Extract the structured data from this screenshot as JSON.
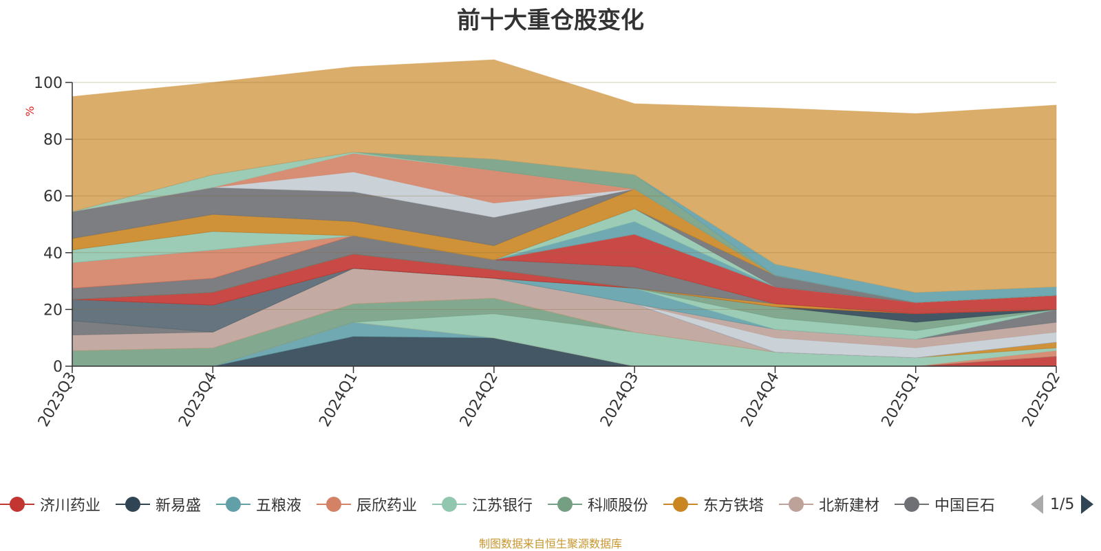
{
  "title": "前十大重仓股变化",
  "source": "制图数据来自恒生聚源数据库",
  "legend_pager": "1/5",
  "chart_data": {
    "type": "area",
    "stacked": true,
    "title": "前十大重仓股变化",
    "ylabel": "%",
    "ylim": [
      0,
      100
    ],
    "yticks": [
      0,
      20,
      40,
      60,
      80,
      100
    ],
    "grid": true,
    "legend_position": "bottom",
    "categories": [
      "2023Q3",
      "2023Q4",
      "2024Q1",
      "2024Q2",
      "2024Q3",
      "2024Q4",
      "2025Q1",
      "2025Q2"
    ],
    "series": [
      {
        "name": "济川药业",
        "color": "#c23531",
        "legend": true,
        "values": [
          0,
          0,
          0,
          0,
          0,
          0,
          0,
          3.5
        ]
      },
      {
        "name": "新易盛",
        "color": "#2f4554",
        "legend": true,
        "values": [
          0,
          0,
          10.5,
          10,
          0,
          0,
          0,
          0
        ]
      },
      {
        "name": "五粮液",
        "color": "#61a0a8",
        "legend": true,
        "values": [
          0,
          0,
          5,
          0,
          0,
          0,
          0,
          0
        ]
      },
      {
        "name": "辰欣药业",
        "color": "#d48265",
        "legend": true,
        "values": [
          0,
          0,
          0,
          0,
          0,
          0,
          0,
          2
        ]
      },
      {
        "name": "江苏银行",
        "color": "#91c7ae",
        "legend": true,
        "values": [
          0,
          0,
          0,
          8.5,
          12,
          5,
          3,
          1
        ]
      },
      {
        "name": "科顺股份",
        "color": "#749f83",
        "legend": true,
        "values": [
          5.5,
          6.5,
          6.5,
          5.5,
          0,
          0,
          0,
          0
        ]
      },
      {
        "name": "东方铁塔",
        "color": "#ca8622",
        "legend": true,
        "values": [
          0,
          0,
          0,
          0,
          0,
          0,
          0,
          2
        ]
      },
      {
        "name": "北新建材",
        "color": "#bda29a",
        "legend": true,
        "values": [
          5.5,
          5.5,
          12.5,
          7,
          10,
          0,
          0,
          0
        ]
      },
      {
        "name": "中国巨石",
        "color": "#6e7074",
        "legend": true,
        "values": [
          5,
          0,
          0,
          0,
          0,
          0,
          0,
          0
        ]
      },
      {
        "name": "",
        "color": "#546570",
        "legend": false,
        "values": [
          7.5,
          9.5,
          0,
          0,
          0,
          0,
          0,
          0
        ]
      },
      {
        "name": "",
        "color": "#c4ccd3",
        "legend": false,
        "values": [
          0,
          0,
          0,
          0,
          0,
          5,
          3.5,
          3.5
        ]
      },
      {
        "name": "",
        "color": "#bda29a",
        "legend": false,
        "values": [
          0,
          0,
          0,
          0,
          0,
          3,
          3,
          3.5
        ]
      },
      {
        "name": "",
        "color": "#6e7074",
        "legend": false,
        "values": [
          0,
          0,
          0,
          0,
          0,
          0,
          0,
          4.5
        ]
      },
      {
        "name": "",
        "color": "#61a0a8",
        "legend": false,
        "values": [
          0,
          0,
          0,
          0,
          5.5,
          0,
          0,
          0
        ]
      },
      {
        "name": "",
        "color": "#91c7ae",
        "legend": false,
        "values": [
          0,
          0,
          0,
          0,
          0,
          4,
          3,
          0
        ]
      },
      {
        "name": "",
        "color": "#749f83",
        "legend": false,
        "values": [
          0,
          0,
          0,
          0,
          0,
          4,
          3,
          0
        ]
      },
      {
        "name": "",
        "color": "#2f4554",
        "legend": false,
        "values": [
          0,
          0,
          0,
          0,
          0,
          0,
          3,
          0
        ]
      },
      {
        "name": "",
        "color": "#c23531",
        "legend": false,
        "values": [
          0,
          4.5,
          5,
          3,
          0,
          0,
          0,
          0
        ]
      },
      {
        "name": "",
        "color": "#ca8622",
        "legend": false,
        "values": [
          0,
          0,
          0,
          0,
          0,
          1,
          0,
          0
        ]
      },
      {
        "name": "",
        "color": "#6e7074",
        "legend": false,
        "values": [
          4,
          5,
          6.5,
          3.5,
          7.5,
          0,
          0,
          0
        ]
      },
      {
        "name": "",
        "color": "#c23531",
        "legend": false,
        "values": [
          0,
          0,
          0,
          0,
          11.5,
          6,
          4,
          5
        ]
      },
      {
        "name": "",
        "color": "#d48265",
        "legend": false,
        "values": [
          9,
          10,
          0,
          0,
          0,
          0,
          0,
          0
        ]
      },
      {
        "name": "",
        "color": "#61a0a8",
        "legend": false,
        "values": [
          0,
          0,
          0,
          0,
          4.5,
          0,
          0,
          0
        ]
      },
      {
        "name": "",
        "color": "#91c7ae",
        "legend": false,
        "values": [
          4.5,
          6.5,
          0,
          0,
          4.5,
          0,
          0,
          0
        ]
      },
      {
        "name": "",
        "color": "#6e7074",
        "legend": false,
        "values": [
          0,
          0,
          0,
          0,
          0,
          4,
          0,
          0
        ]
      },
      {
        "name": "",
        "color": "#ca8622",
        "legend": false,
        "values": [
          4,
          6,
          5,
          5,
          7,
          0,
          0,
          0
        ]
      },
      {
        "name": "",
        "color": "#6e7074",
        "legend": false,
        "values": [
          9.5,
          9.5,
          10.5,
          10,
          0,
          0,
          0,
          0
        ]
      },
      {
        "name": "",
        "color": "#c4ccd3",
        "legend": false,
        "values": [
          0,
          0,
          7,
          5,
          0,
          0,
          0,
          0
        ]
      },
      {
        "name": "",
        "color": "#d48265",
        "legend": false,
        "values": [
          0,
          0,
          6.5,
          11.5,
          0,
          0,
          0,
          0
        ]
      },
      {
        "name": "",
        "color": "#91c7ae",
        "legend": false,
        "values": [
          0,
          4.5,
          0.5,
          0,
          0,
          0,
          0,
          0
        ]
      },
      {
        "name": "",
        "color": "#749f83",
        "legend": false,
        "values": [
          0,
          0,
          0,
          4,
          5,
          0,
          0,
          0
        ]
      },
      {
        "name": "",
        "color": "#61a0a8",
        "legend": false,
        "values": [
          0,
          0,
          0,
          0,
          0,
          4,
          3.5,
          3
        ]
      },
      {
        "name": "",
        "color": "#d6a45a",
        "legend": false,
        "values": [
          40.5,
          32.5,
          30,
          35,
          25,
          55,
          63,
          64
        ]
      }
    ]
  }
}
